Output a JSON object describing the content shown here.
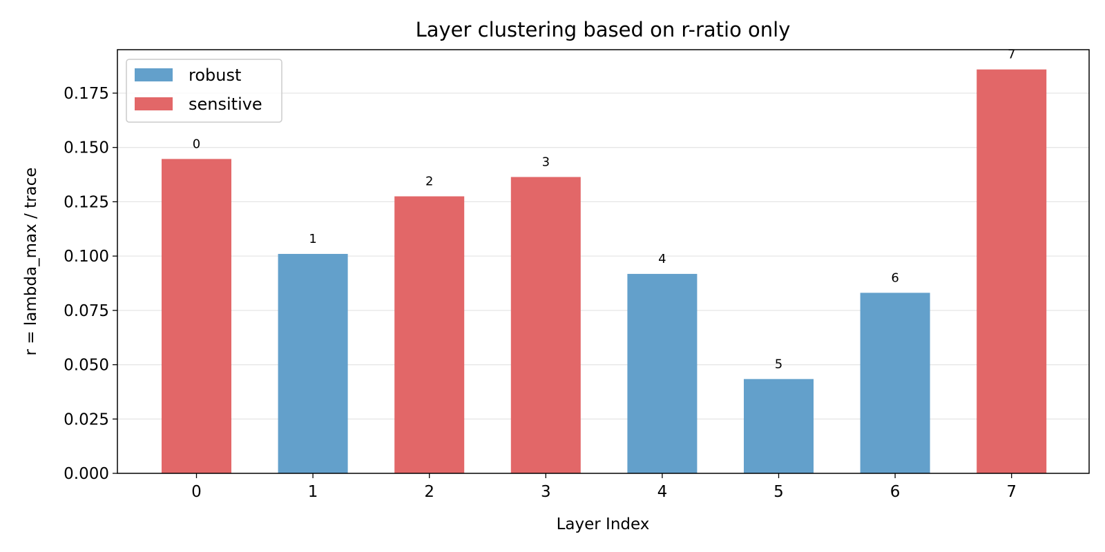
{
  "chart_data": {
    "type": "bar",
    "title": "Layer clustering based on r-ratio only",
    "xlabel": "Layer Index",
    "ylabel": "r = lambda_max / trace",
    "categories": [
      "0",
      "1",
      "2",
      "3",
      "4",
      "5",
      "6",
      "7"
    ],
    "values": [
      0.1447,
      0.101,
      0.1275,
      0.1364,
      0.0918,
      0.0434,
      0.0831,
      0.1859
    ],
    "clusters": [
      "sensitive",
      "robust",
      "sensitive",
      "sensitive",
      "robust",
      "robust",
      "robust",
      "sensitive"
    ],
    "data_labels": [
      "0",
      "1",
      "2",
      "3",
      "4",
      "5",
      "6",
      "7"
    ],
    "ylim": [
      0,
      0.195
    ],
    "yticks": [
      0.0,
      0.025,
      0.05,
      0.075,
      0.1,
      0.125,
      0.15,
      0.175
    ],
    "ytick_labels": [
      "0.000",
      "0.025",
      "0.050",
      "0.075",
      "0.100",
      "0.125",
      "0.150",
      "0.175"
    ],
    "grid": "y-only",
    "legend": {
      "placement": "top-left",
      "entries": [
        {
          "label": "robust",
          "color": "#63a0cb"
        },
        {
          "label": "sensitive",
          "color": "#e26768"
        }
      ]
    },
    "colors": {
      "robust": "#63a0cb",
      "sensitive": "#e26768"
    }
  }
}
